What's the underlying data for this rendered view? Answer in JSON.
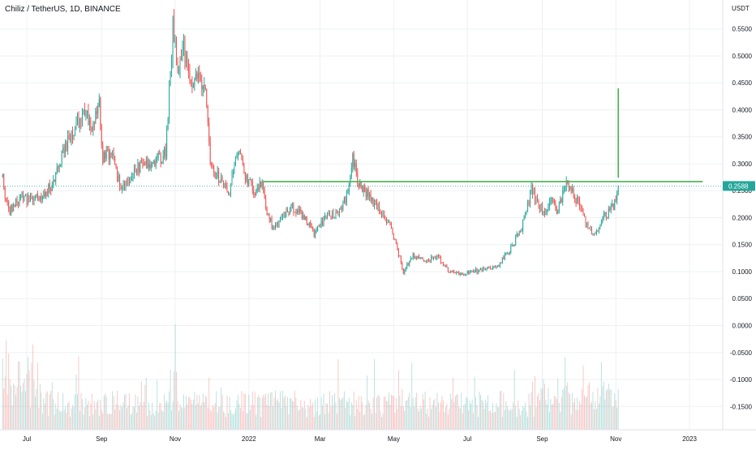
{
  "chart_data": {
    "type": "candlestick",
    "title": "Chiliz / TetherUS, 1D, BINANCE",
    "currency_label": "USDT",
    "last_price": 0.2588,
    "last_price_label": "0.2588",
    "ylim": [
      -0.19,
      0.61
    ],
    "y_ticks": [
      {
        "value": 0.55,
        "label": "0.5500"
      },
      {
        "value": 0.5,
        "label": "0.5000"
      },
      {
        "value": 0.45,
        "label": "0.4500"
      },
      {
        "value": 0.4,
        "label": "0.4000"
      },
      {
        "value": 0.35,
        "label": "0.3500"
      },
      {
        "value": 0.3,
        "label": "0.3000"
      },
      {
        "value": 0.25,
        "label": "0.2500"
      },
      {
        "value": 0.2,
        "label": "0.2000"
      },
      {
        "value": 0.15,
        "label": "0.1500"
      },
      {
        "value": 0.1,
        "label": "0.1000"
      },
      {
        "value": 0.05,
        "label": "0.0500"
      },
      {
        "value": 0.0,
        "label": "0.0000"
      },
      {
        "value": -0.05,
        "label": "-0.0500"
      },
      {
        "value": -0.1,
        "label": "-0.1000"
      },
      {
        "value": -0.15,
        "label": "-0.1500"
      }
    ],
    "x_ticks": [
      {
        "day": 0,
        "label": "Jul"
      },
      {
        "day": 62,
        "label": "Sep"
      },
      {
        "day": 123,
        "label": "Nov"
      },
      {
        "day": 184,
        "label": "2022"
      },
      {
        "day": 243,
        "label": "Mar"
      },
      {
        "day": 304,
        "label": "May"
      },
      {
        "day": 365,
        "label": "Jul"
      },
      {
        "day": 427,
        "label": "Sep"
      },
      {
        "day": 488,
        "label": "Nov"
      },
      {
        "day": 549,
        "label": "2023"
      }
    ],
    "x_axis_days": [
      -20,
      584
    ],
    "price_keypoints": [
      [
        -20,
        0.27
      ],
      [
        -15,
        0.21
      ],
      [
        -5,
        0.24
      ],
      [
        0,
        0.23
      ],
      [
        10,
        0.24
      ],
      [
        22,
        0.26
      ],
      [
        30,
        0.32
      ],
      [
        40,
        0.37
      ],
      [
        48,
        0.39
      ],
      [
        55,
        0.37
      ],
      [
        60,
        0.41
      ],
      [
        63,
        0.31
      ],
      [
        70,
        0.32
      ],
      [
        78,
        0.25
      ],
      [
        85,
        0.27
      ],
      [
        95,
        0.3
      ],
      [
        105,
        0.3
      ],
      [
        115,
        0.32
      ],
      [
        121,
        0.55
      ],
      [
        125,
        0.48
      ],
      [
        130,
        0.52
      ],
      [
        135,
        0.44
      ],
      [
        140,
        0.46
      ],
      [
        148,
        0.43
      ],
      [
        152,
        0.3
      ],
      [
        160,
        0.27
      ],
      [
        168,
        0.25
      ],
      [
        175,
        0.33
      ],
      [
        180,
        0.28
      ],
      [
        188,
        0.25
      ],
      [
        195,
        0.26
      ],
      [
        200,
        0.2
      ],
      [
        205,
        0.18
      ],
      [
        212,
        0.2
      ],
      [
        220,
        0.22
      ],
      [
        230,
        0.2
      ],
      [
        238,
        0.17
      ],
      [
        248,
        0.2
      ],
      [
        258,
        0.21
      ],
      [
        265,
        0.24
      ],
      [
        270,
        0.31
      ],
      [
        274,
        0.27
      ],
      [
        280,
        0.25
      ],
      [
        290,
        0.22
      ],
      [
        300,
        0.19
      ],
      [
        306,
        0.15
      ],
      [
        312,
        0.1
      ],
      [
        320,
        0.13
      ],
      [
        330,
        0.12
      ],
      [
        340,
        0.13
      ],
      [
        350,
        0.1
      ],
      [
        360,
        0.095
      ],
      [
        370,
        0.1
      ],
      [
        380,
        0.105
      ],
      [
        390,
        0.11
      ],
      [
        400,
        0.14
      ],
      [
        410,
        0.18
      ],
      [
        418,
        0.25
      ],
      [
        422,
        0.23
      ],
      [
        428,
        0.21
      ],
      [
        435,
        0.23
      ],
      [
        440,
        0.21
      ],
      [
        447,
        0.27
      ],
      [
        452,
        0.25
      ],
      [
        458,
        0.22
      ],
      [
        463,
        0.19
      ],
      [
        470,
        0.17
      ],
      [
        478,
        0.2
      ],
      [
        486,
        0.22
      ],
      [
        490,
        0.2588
      ]
    ],
    "highest_high": 0.59,
    "lowest_low": 0.085,
    "peak_volume_day": 123,
    "annotations": [
      {
        "type": "horizontal_line",
        "color": "#4caf50",
        "y": 0.267,
        "x_from_day": 196,
        "x_to_day": 560
      },
      {
        "type": "vertical_line",
        "color": "#4caf50",
        "x_day": 490,
        "y_from": 0.274,
        "y_to": 0.44
      }
    ],
    "colors": {
      "up": "#26a69a",
      "down": "#ef5350",
      "annotation": "#4caf50",
      "price_tag": "#26a69a",
      "grid": "#eef0f3",
      "text": "#131722"
    }
  }
}
